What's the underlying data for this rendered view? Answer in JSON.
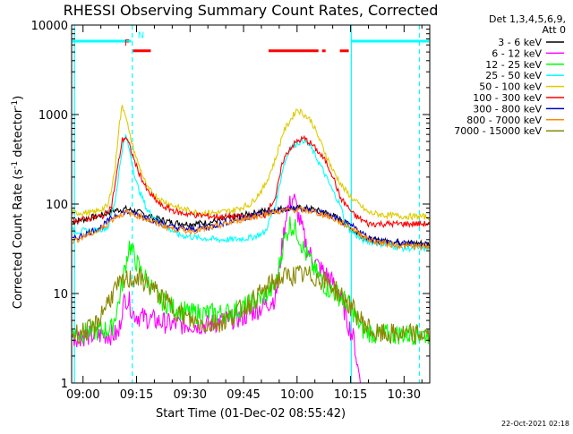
{
  "chart_data": {
    "type": "line",
    "title": "RHESSI Observing Summary Count Rates, Corrected",
    "ylabel_main": "Corrected Count Rate (s",
    "ylabel_sup": "-1",
    "ylabel_mid": " detector",
    "ylabel_sup2": "-1",
    "ylabel_end": ")",
    "xlabel": "Start Time (01-Dec-02 08:55:42)",
    "timestamp": "22-Oct-2021 02:18",
    "y_scale": "log",
    "ylim": [
      1,
      10000
    ],
    "xlim_minutes": [
      -3.2,
      97.2
    ],
    "y_ticks": [
      {
        "value": 1,
        "label": "1"
      },
      {
        "value": 10,
        "label": "10"
      },
      {
        "value": 100,
        "label": "100"
      },
      {
        "value": 1000,
        "label": "1000"
      },
      {
        "value": 10000,
        "label": "10000"
      }
    ],
    "x_ticks": [
      {
        "minute": 0,
        "label": "09:00"
      },
      {
        "minute": 15,
        "label": "09:15"
      },
      {
        "minute": 30,
        "label": "09:30"
      },
      {
        "minute": 45,
        "label": "09:45"
      },
      {
        "minute": 60,
        "label": "10:00"
      },
      {
        "minute": 75,
        "label": "10:15"
      },
      {
        "minute": 90,
        "label": "10:30"
      }
    ],
    "legend_header": [
      "Det 1,3,4,5,6,9,",
      "Att 0"
    ],
    "series": [
      {
        "name": "3 - 6 keV",
        "color": "#000000",
        "points": [
          [
            -3,
            63
          ],
          [
            5,
            75
          ],
          [
            9,
            85
          ],
          [
            12,
            88
          ],
          [
            16,
            80
          ],
          [
            20,
            70
          ],
          [
            25,
            62
          ],
          [
            30,
            60
          ],
          [
            35,
            62
          ],
          [
            40,
            68
          ],
          [
            45,
            75
          ],
          [
            50,
            83
          ],
          [
            55,
            88
          ],
          [
            58,
            90
          ],
          [
            61,
            90
          ],
          [
            64,
            88
          ],
          [
            68,
            80
          ],
          [
            72,
            68
          ],
          [
            76,
            50
          ],
          [
            80,
            40
          ],
          [
            85,
            38
          ],
          [
            90,
            37
          ],
          [
            97,
            36
          ]
        ]
      },
      {
        "name": "6 - 12 keV",
        "color": "#ff00ff",
        "points": [
          [
            -3,
            3.3
          ],
          [
            10,
            3.5
          ],
          [
            11,
            7
          ],
          [
            12,
            9
          ],
          [
            13,
            8
          ],
          [
            14,
            6
          ],
          [
            16,
            5.5
          ],
          [
            20,
            5
          ],
          [
            25,
            4.5
          ],
          [
            30,
            4.5
          ],
          [
            35,
            4.5
          ],
          [
            40,
            5
          ],
          [
            45,
            5.5
          ],
          [
            50,
            7
          ],
          [
            54,
            9
          ],
          [
            57,
            80
          ],
          [
            59,
            120
          ],
          [
            61,
            60
          ],
          [
            63,
            30
          ],
          [
            66,
            20
          ],
          [
            69,
            15
          ],
          [
            72,
            10
          ],
          [
            74,
            5
          ],
          [
            76,
            3
          ],
          [
            77,
            1.5
          ],
          [
            78,
            1
          ]
        ]
      },
      {
        "name": "12 - 25 keV",
        "color": "#00ff00",
        "points": [
          [
            -3,
            3.5
          ],
          [
            8,
            4
          ],
          [
            10,
            8
          ],
          [
            12,
            22
          ],
          [
            13,
            35
          ],
          [
            14,
            28
          ],
          [
            16,
            18
          ],
          [
            18,
            14
          ],
          [
            21,
            9
          ],
          [
            25,
            7
          ],
          [
            30,
            6
          ],
          [
            35,
            6
          ],
          [
            40,
            6
          ],
          [
            45,
            7
          ],
          [
            50,
            9
          ],
          [
            54,
            12
          ],
          [
            56,
            35
          ],
          [
            58,
            60
          ],
          [
            60,
            50
          ],
          [
            62,
            30
          ],
          [
            65,
            18
          ],
          [
            68,
            12
          ],
          [
            71,
            10
          ],
          [
            74,
            8
          ],
          [
            76,
            6
          ],
          [
            78,
            4
          ],
          [
            82,
            3.5
          ],
          [
            97,
            3.5
          ]
        ]
      },
      {
        "name": "25 - 50 keV",
        "color": "#00ffff",
        "points": [
          [
            -3,
            50
          ],
          [
            3,
            50
          ],
          [
            7,
            55
          ],
          [
            9,
            110
          ],
          [
            11,
            420
          ],
          [
            12,
            580
          ],
          [
            13,
            400
          ],
          [
            15,
            170
          ],
          [
            18,
            85
          ],
          [
            22,
            60
          ],
          [
            27,
            45
          ],
          [
            32,
            42
          ],
          [
            38,
            40
          ],
          [
            42,
            40
          ],
          [
            47,
            42
          ],
          [
            51,
            48
          ],
          [
            54,
            100
          ],
          [
            56,
            250
          ],
          [
            58,
            420
          ],
          [
            60,
            480
          ],
          [
            62,
            520
          ],
          [
            64,
            420
          ],
          [
            67,
            250
          ],
          [
            70,
            140
          ],
          [
            72,
            100
          ],
          [
            74,
            55
          ],
          [
            78,
            40
          ],
          [
            85,
            35
          ],
          [
            90,
            32
          ],
          [
            97,
            32
          ]
        ]
      },
      {
        "name": "50 - 100 keV",
        "color": "#ddcc00",
        "points": [
          [
            -3,
            80
          ],
          [
            3,
            80
          ],
          [
            7,
            95
          ],
          [
            9,
            250
          ],
          [
            10,
            700
          ],
          [
            11,
            1250
          ],
          [
            12,
            1000
          ],
          [
            13,
            600
          ],
          [
            15,
            320
          ],
          [
            18,
            150
          ],
          [
            22,
            110
          ],
          [
            27,
            90
          ],
          [
            32,
            80
          ],
          [
            38,
            80
          ],
          [
            42,
            85
          ],
          [
            47,
            100
          ],
          [
            51,
            160
          ],
          [
            54,
            320
          ],
          [
            56,
            620
          ],
          [
            58,
            850
          ],
          [
            60,
            1150
          ],
          [
            62,
            1000
          ],
          [
            64,
            850
          ],
          [
            67,
            450
          ],
          [
            70,
            240
          ],
          [
            73,
            150
          ],
          [
            76,
            110
          ],
          [
            80,
            80
          ],
          [
            85,
            75
          ],
          [
            90,
            73
          ],
          [
            97,
            72
          ]
        ]
      },
      {
        "name": "100 - 300 keV",
        "color": "#ff0000",
        "points": [
          [
            -3,
            65
          ],
          [
            3,
            70
          ],
          [
            6,
            75
          ],
          [
            8,
            95
          ],
          [
            10,
            300
          ],
          [
            11,
            520
          ],
          [
            12,
            560
          ],
          [
            13,
            450
          ],
          [
            15,
            260
          ],
          [
            18,
            140
          ],
          [
            22,
            95
          ],
          [
            27,
            80
          ],
          [
            32,
            75
          ],
          [
            38,
            72
          ],
          [
            42,
            72
          ],
          [
            47,
            72
          ],
          [
            51,
            75
          ],
          [
            54,
            120
          ],
          [
            56,
            300
          ],
          [
            58,
            420
          ],
          [
            60,
            500
          ],
          [
            62,
            540
          ],
          [
            64,
            470
          ],
          [
            66,
            380
          ],
          [
            68,
            300
          ],
          [
            70,
            210
          ],
          [
            72,
            120
          ],
          [
            74,
            95
          ],
          [
            76,
            75
          ],
          [
            80,
            60
          ],
          [
            85,
            60
          ],
          [
            90,
            60
          ],
          [
            97,
            60
          ]
        ]
      },
      {
        "name": "300 - 800 keV",
        "color": "#0000cc",
        "points": [
          [
            -3,
            40
          ],
          [
            5,
            55
          ],
          [
            9,
            75
          ],
          [
            12,
            82
          ],
          [
            16,
            75
          ],
          [
            20,
            65
          ],
          [
            25,
            55
          ],
          [
            30,
            52
          ],
          [
            35,
            55
          ],
          [
            40,
            62
          ],
          [
            45,
            70
          ],
          [
            50,
            78
          ],
          [
            55,
            85
          ],
          [
            58,
            88
          ],
          [
            61,
            88
          ],
          [
            64,
            85
          ],
          [
            68,
            78
          ],
          [
            72,
            65
          ],
          [
            76,
            55
          ],
          [
            80,
            42
          ],
          [
            85,
            38
          ],
          [
            90,
            36
          ],
          [
            97,
            35
          ]
        ]
      },
      {
        "name": "800 - 7000 keV",
        "color": "#ff8800",
        "points": [
          [
            -3,
            38
          ],
          [
            5,
            52
          ],
          [
            9,
            72
          ],
          [
            12,
            80
          ],
          [
            16,
            73
          ],
          [
            20,
            62
          ],
          [
            25,
            53
          ],
          [
            30,
            50
          ],
          [
            35,
            53
          ],
          [
            40,
            60
          ],
          [
            45,
            68
          ],
          [
            50,
            76
          ],
          [
            55,
            83
          ],
          [
            58,
            86
          ],
          [
            61,
            86
          ],
          [
            64,
            83
          ],
          [
            68,
            75
          ],
          [
            72,
            63
          ],
          [
            76,
            52
          ],
          [
            80,
            40
          ],
          [
            85,
            36
          ],
          [
            90,
            34
          ],
          [
            97,
            33
          ]
        ]
      },
      {
        "name": "7000 - 15000 keV",
        "color": "#888800",
        "points": [
          [
            -3,
            3.5
          ],
          [
            3,
            4
          ],
          [
            6,
            7
          ],
          [
            9,
            11
          ],
          [
            12,
            14
          ],
          [
            15,
            15
          ],
          [
            18,
            13
          ],
          [
            21,
            10
          ],
          [
            25,
            7
          ],
          [
            30,
            5
          ],
          [
            35,
            4.5
          ],
          [
            40,
            5
          ],
          [
            45,
            7
          ],
          [
            50,
            10
          ],
          [
            54,
            14
          ],
          [
            58,
            16
          ],
          [
            62,
            16
          ],
          [
            66,
            15
          ],
          [
            70,
            12
          ],
          [
            74,
            8
          ],
          [
            78,
            5
          ],
          [
            82,
            3.5
          ],
          [
            97,
            3.5
          ]
        ]
      }
    ],
    "flags": [
      {
        "label": "",
        "y_frac": 0.045,
        "color": "#00ffff",
        "segments": [
          [
            -3,
            13.5
          ],
          [
            75,
            97
          ]
        ]
      },
      {
        "label": "N",
        "y_frac": 0.068,
        "color": "#00ffff",
        "segments": []
      },
      {
        "label": "F",
        "y_frac": 0.072,
        "color": "#ff0000",
        "segments": [
          [
            14,
            19
          ],
          [
            52,
            66
          ],
          [
            67,
            68
          ],
          [
            72,
            74.5
          ]
        ]
      }
    ],
    "vlines": [
      {
        "minute": 13.8,
        "color": "#00ffff",
        "style": "dashed"
      },
      {
        "minute": 75.2,
        "color": "#00ffff",
        "style": "solid"
      },
      {
        "minute": 94.3,
        "color": "#00ffff",
        "style": "dashed"
      },
      {
        "minute": -2.4,
        "color": "#00ffff",
        "style": "solid"
      }
    ]
  }
}
